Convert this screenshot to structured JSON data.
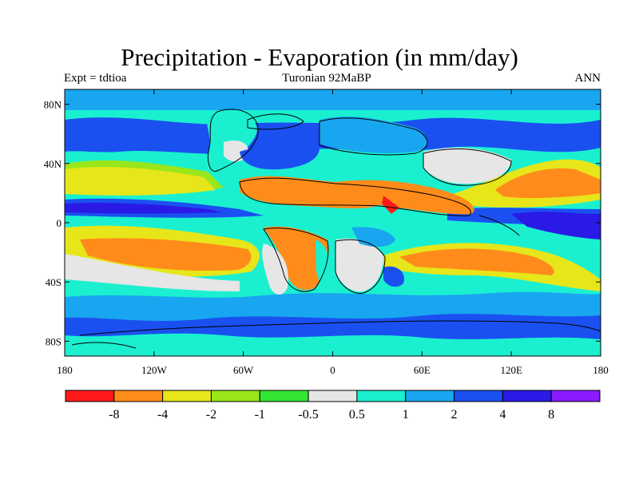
{
  "title": "Precipitation - Evaporation (in mm/day)",
  "left_label": "Expt = tdtioa",
  "center_label": "Turonian  92MaBP",
  "right_label": "ANN",
  "lat_ticks": [
    {
      "value": 80,
      "label": "80N"
    },
    {
      "value": 40,
      "label": "40N"
    },
    {
      "value": 0,
      "label": "0"
    },
    {
      "value": -40,
      "label": "40S"
    },
    {
      "value": -80,
      "label": "80S"
    }
  ],
  "lon_ticks": [
    {
      "value": -180,
      "label": "180"
    },
    {
      "value": -120,
      "label": "120W"
    },
    {
      "value": -60,
      "label": "60W"
    },
    {
      "value": 0,
      "label": "0"
    },
    {
      "value": 60,
      "label": "60E"
    },
    {
      "value": 120,
      "label": "120E"
    },
    {
      "value": 180,
      "label": "180"
    }
  ],
  "colorbar": {
    "colors": [
      "#ff1a1a",
      "#ff8c1a",
      "#e6e61a",
      "#99e61a",
      "#33e633",
      "#e6e6e6",
      "#1af0d0",
      "#19a6f0",
      "#1a50f0",
      "#2a1ae6",
      "#8c1aff"
    ],
    "labels": [
      "-8",
      "-4",
      "-2",
      "-1",
      "-0.5",
      "0.5",
      "1",
      "2",
      "4",
      "8"
    ]
  },
  "colors": {
    "background": "#ffffff",
    "coast": "#000000"
  }
}
